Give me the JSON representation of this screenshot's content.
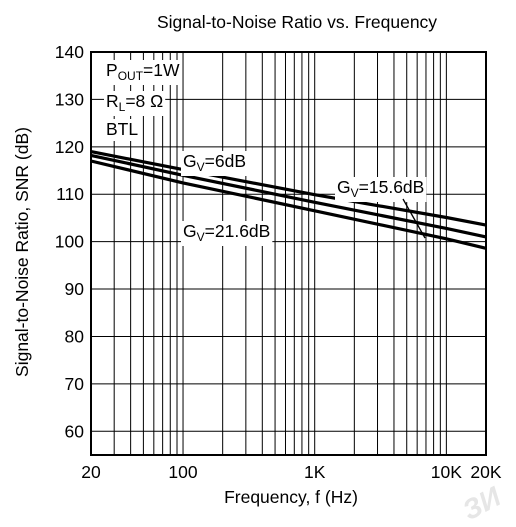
{
  "chart_data": {
    "type": "line",
    "title": "Signal-to-Noise Ratio vs. Frequency",
    "xlabel": "Frequency, f (Hz)",
    "ylabel": "Signal-to-Noise Ratio, SNR (dB)",
    "x_scale": "log",
    "xlim": [
      20,
      20000
    ],
    "ylim": [
      55,
      140
    ],
    "grid": true,
    "x_ticks": [
      {
        "value": 20,
        "label": "20"
      },
      {
        "value": 100,
        "label": "100"
      },
      {
        "value": 1000,
        "label": "1K"
      },
      {
        "value": 10000,
        "label": "10K"
      },
      {
        "value": 20000,
        "label": "20K"
      }
    ],
    "y_ticks": [
      {
        "value": 60,
        "label": "60"
      },
      {
        "value": 70,
        "label": "70"
      },
      {
        "value": 80,
        "label": "80"
      },
      {
        "value": 90,
        "label": "90"
      },
      {
        "value": 100,
        "label": "100"
      },
      {
        "value": 110,
        "label": "110"
      },
      {
        "value": 120,
        "label": "120"
      },
      {
        "value": 130,
        "label": "130"
      },
      {
        "value": 140,
        "label": "140"
      }
    ],
    "conditions": [
      {
        "main": "P",
        "sub": "OUT",
        "rest": "=1W"
      },
      {
        "main": "R",
        "sub": "L",
        "rest": "=8 Ω"
      },
      {
        "main": "BTL",
        "sub": "",
        "rest": ""
      }
    ],
    "series": [
      {
        "main": "G",
        "sub": "V",
        "rest": "=6dB",
        "x": [
          20,
          100,
          1000,
          10000,
          20000
        ],
        "y": [
          119,
          115.2,
          109.9,
          105.1,
          103.5
        ]
      },
      {
        "main": "G",
        "sub": "V",
        "rest": "=15.6dB",
        "x": [
          20,
          100,
          1000,
          10000,
          20000
        ],
        "y": [
          118.2,
          114,
          108.3,
          102.8,
          101
        ]
      },
      {
        "main": "G",
        "sub": "V",
        "rest": "=21.6dB",
        "x": [
          20,
          100,
          1000,
          10000,
          20000
        ],
        "y": [
          117,
          112.4,
          106.5,
          100.6,
          98.6
        ]
      }
    ]
  },
  "watermark": "ЗИ"
}
